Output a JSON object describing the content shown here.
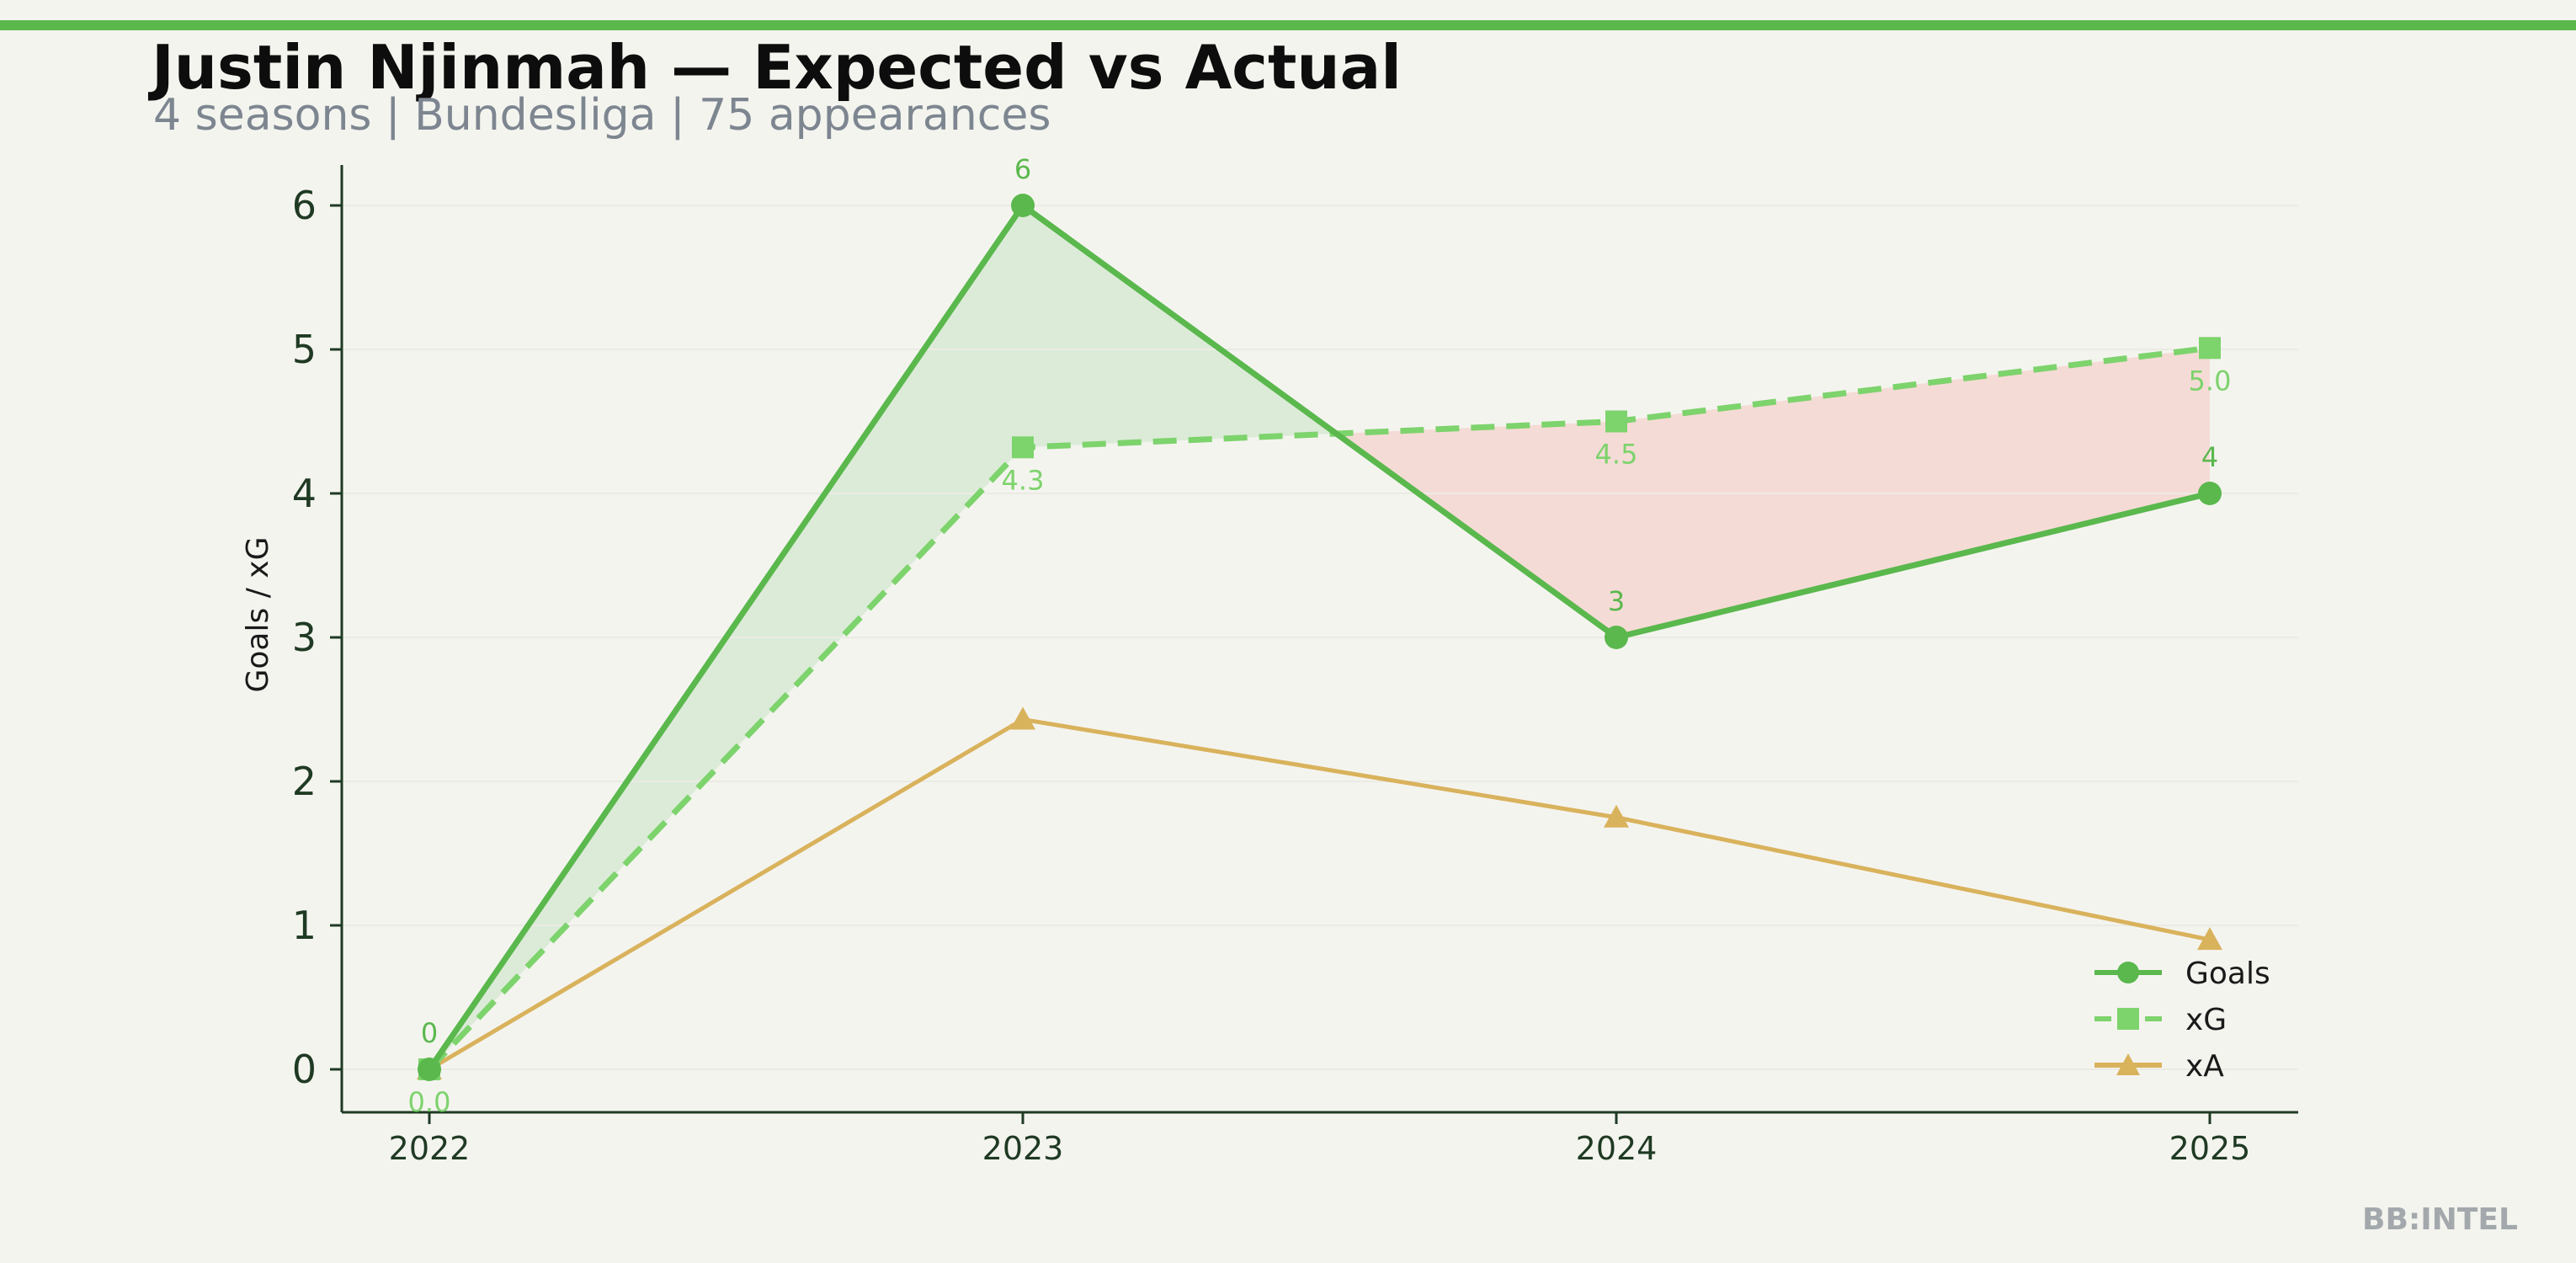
{
  "header": {
    "title": "Justin Njinmah — Expected vs Actual",
    "subtitle": "4 seasons | Bundesliga | 75 appearances"
  },
  "brand": "BB:INTEL",
  "colors": {
    "accent": "#5ab84d",
    "goals": "#5ab84d",
    "xg": "#7dd36c",
    "xa": "#d9b25c",
    "overperform_fill": "#dcebd8",
    "underperform_fill": "#f5dbd6",
    "axis": "#1f3a23",
    "background": "#f4f4ef"
  },
  "chart_data": {
    "type": "line",
    "title": "",
    "xlabel": "",
    "ylabel": "Goals / xG",
    "categories": [
      "2022",
      "2023",
      "2024",
      "2025"
    ],
    "ylim": [
      -0.3,
      6.3
    ],
    "yticks": [
      0,
      1,
      2,
      3,
      4,
      5,
      6
    ],
    "grid": false,
    "legend_position": "bottom-right",
    "series": [
      {
        "name": "Goals",
        "values": [
          0,
          6,
          3,
          4
        ],
        "labels": [
          "0",
          "6",
          "3",
          "4"
        ],
        "style": "solid",
        "marker": "circle"
      },
      {
        "name": "xG",
        "values": [
          0.0,
          4.32,
          4.5,
          5.01
        ],
        "labels": [
          "0.0",
          "4.3",
          "4.5",
          "5.0"
        ],
        "style": "dashed",
        "marker": "square"
      },
      {
        "name": "xA",
        "values": [
          0.0,
          2.43,
          1.75,
          0.9
        ],
        "style": "solid",
        "marker": "triangle"
      }
    ]
  }
}
